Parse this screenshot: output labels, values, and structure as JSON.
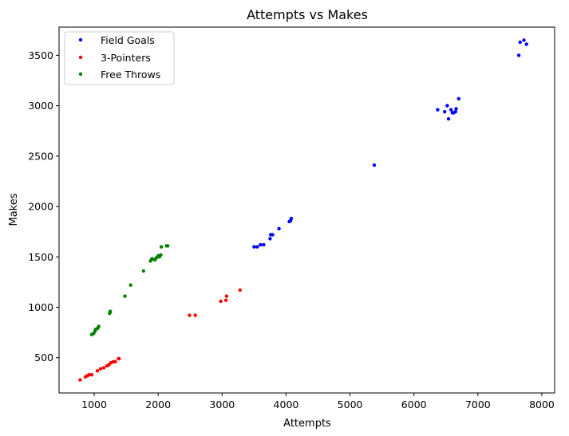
{
  "chart_data": {
    "type": "scatter",
    "title": "Attempts vs Makes",
    "xlabel": "Attempts",
    "ylabel": "Makes",
    "xlim": [
      450,
      8200
    ],
    "ylim": [
      150,
      3780
    ],
    "xticks": [
      1000,
      2000,
      3000,
      4000,
      5000,
      6000,
      7000,
      8000
    ],
    "yticks": [
      500,
      1000,
      1500,
      2000,
      2500,
      3000,
      3500
    ],
    "grid": false,
    "legend_position": "top-left",
    "series": [
      {
        "name": "Field Goals",
        "color": "#0000ff",
        "points": [
          [
            3500,
            1600
          ],
          [
            3550,
            1600
          ],
          [
            3600,
            1620
          ],
          [
            3650,
            1620
          ],
          [
            3750,
            1680
          ],
          [
            3760,
            1720
          ],
          [
            3790,
            1720
          ],
          [
            3890,
            1780
          ],
          [
            4050,
            1850
          ],
          [
            4070,
            1860
          ],
          [
            4080,
            1880
          ],
          [
            5380,
            2410
          ],
          [
            6370,
            2960
          ],
          [
            6480,
            2940
          ],
          [
            6520,
            3000
          ],
          [
            6540,
            2870
          ],
          [
            6580,
            2960
          ],
          [
            6600,
            2930
          ],
          [
            6620,
            2930
          ],
          [
            6650,
            2940
          ],
          [
            6660,
            2970
          ],
          [
            6700,
            3070
          ],
          [
            7640,
            3500
          ],
          [
            7660,
            3630
          ],
          [
            7720,
            3650
          ],
          [
            7760,
            3610
          ]
        ]
      },
      {
        "name": "3-Pointers",
        "color": "#ff0000",
        "points": [
          [
            780,
            280
          ],
          [
            860,
            310
          ],
          [
            890,
            320
          ],
          [
            920,
            330
          ],
          [
            960,
            330
          ],
          [
            1050,
            370
          ],
          [
            1100,
            390
          ],
          [
            1150,
            400
          ],
          [
            1200,
            420
          ],
          [
            1230,
            430
          ],
          [
            1260,
            450
          ],
          [
            1300,
            460
          ],
          [
            1330,
            460
          ],
          [
            1380,
            490
          ],
          [
            1390,
            490
          ],
          [
            2490,
            920
          ],
          [
            2580,
            920
          ],
          [
            2980,
            1060
          ],
          [
            3060,
            1070
          ],
          [
            3070,
            1110
          ],
          [
            3280,
            1170
          ]
        ]
      },
      {
        "name": "Free Throws",
        "color": "#008000",
        "points": [
          [
            960,
            730
          ],
          [
            990,
            740
          ],
          [
            1010,
            760
          ],
          [
            1020,
            780
          ],
          [
            1050,
            790
          ],
          [
            1070,
            810
          ],
          [
            1240,
            940
          ],
          [
            1250,
            950
          ],
          [
            1250,
            960
          ],
          [
            1480,
            1110
          ],
          [
            1570,
            1220
          ],
          [
            1770,
            1360
          ],
          [
            1880,
            1460
          ],
          [
            1900,
            1480
          ],
          [
            1910,
            1480
          ],
          [
            1950,
            1470
          ],
          [
            1970,
            1490
          ],
          [
            2000,
            1510
          ],
          [
            2020,
            1500
          ],
          [
            2040,
            1520
          ],
          [
            2050,
            1600
          ],
          [
            2130,
            1610
          ],
          [
            2150,
            1610
          ]
        ]
      }
    ]
  }
}
